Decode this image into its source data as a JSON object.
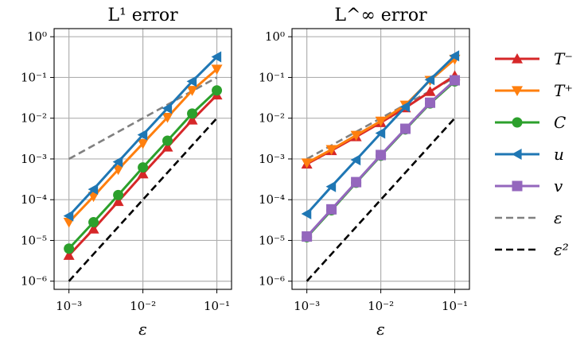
{
  "chart_data": [
    {
      "type": "line",
      "title": "L¹ error",
      "xlabel": "ε",
      "xscale": "log",
      "yscale": "log",
      "xlim": [
        0.00063,
        0.158
      ],
      "ylim": [
        6.3e-07,
        1.58
      ],
      "xticks": [
        "10⁻³",
        "10⁻²",
        "10⁻¹"
      ],
      "yticks": [
        "10⁰",
        "10⁻¹",
        "10⁻²",
        "10⁻³",
        "10⁻⁴",
        "10⁻⁵",
        "10⁻⁶"
      ],
      "grid": true,
      "x": [
        0.001,
        0.00215,
        0.00464,
        0.01,
        0.0215,
        0.0464,
        0.1
      ],
      "series": [
        {
          "name": "T⁻",
          "values": [
            4.3e-06,
            1.9e-05,
            9e-05,
            0.00043,
            0.00195,
            0.009,
            0.037
          ]
        },
        {
          "name": "T⁺",
          "values": [
            2.8e-05,
            0.00012,
            0.00055,
            0.0024,
            0.0105,
            0.048,
            0.16
          ]
        },
        {
          "name": "C",
          "values": [
            6.3e-06,
            2.8e-05,
            0.00013,
            0.00062,
            0.0028,
            0.013,
            0.048
          ]
        },
        {
          "name": "u",
          "values": [
            4e-05,
            0.00018,
            0.00085,
            0.0039,
            0.0175,
            0.08,
            0.32
          ]
        },
        {
          "name": "ε",
          "values": [
            0.001,
            null,
            null,
            null,
            null,
            null,
            0.1
          ]
        },
        {
          "name": "ε²",
          "values": [
            1e-06,
            null,
            null,
            null,
            null,
            null,
            0.01
          ]
        }
      ]
    },
    {
      "type": "line",
      "title": "L^∞ error",
      "xlabel": "ε",
      "xscale": "log",
      "yscale": "log",
      "xlim": [
        0.00063,
        0.158
      ],
      "ylim": [
        6.3e-07,
        1.58
      ],
      "xticks": [
        "10⁻³",
        "10⁻²",
        "10⁻¹"
      ],
      "yticks": [
        "10⁰",
        "10⁻¹",
        "10⁻²",
        "10⁻³",
        "10⁻⁴",
        "10⁻⁵",
        "10⁻⁶"
      ],
      "grid": true,
      "x": [
        0.001,
        0.00215,
        0.00464,
        0.01,
        0.0215,
        0.0464,
        0.1
      ],
      "series": [
        {
          "name": "T⁻",
          "values": [
            0.00075,
            0.0016,
            0.0035,
            0.0078,
            0.018,
            0.045,
            0.11
          ]
        },
        {
          "name": "T⁺",
          "values": [
            0.0008,
            0.0017,
            0.0038,
            0.0085,
            0.021,
            0.085,
            0.28
          ]
        },
        {
          "name": "C",
          "values": [
            1.2e-05,
            5.5e-05,
            0.00026,
            0.0012,
            0.0053,
            0.023,
            0.08
          ]
        },
        {
          "name": "u",
          "values": [
            4.5e-05,
            0.00021,
            0.00095,
            0.0043,
            0.019,
            0.088,
            0.34
          ]
        },
        {
          "name": "v",
          "values": [
            1.25e-05,
            5.8e-05,
            0.00027,
            0.00125,
            0.0055,
            0.024,
            0.085
          ]
        },
        {
          "name": "ε",
          "values": [
            0.001,
            null,
            null,
            null,
            null,
            null,
            0.1
          ]
        },
        {
          "name": "ε²",
          "values": [
            1e-06,
            null,
            null,
            null,
            null,
            null,
            0.01
          ]
        }
      ]
    }
  ],
  "legend": {
    "placement": "right",
    "entries": [
      {
        "label": "T⁻",
        "color": "#d62728",
        "marker": "triangle-up",
        "style": "solid"
      },
      {
        "label": "T⁺",
        "color": "#ff7f0e",
        "marker": "triangle-down",
        "style": "solid"
      },
      {
        "label": "C",
        "color": "#2ca02c",
        "marker": "circle",
        "style": "solid"
      },
      {
        "label": "u",
        "color": "#1f77b4",
        "marker": "triangle-left",
        "style": "solid"
      },
      {
        "label": "v",
        "color": "#9467bd",
        "marker": "square",
        "style": "solid"
      },
      {
        "label": "ε",
        "color": "#808080",
        "marker": "none",
        "style": "dashed"
      },
      {
        "label": "ε²",
        "color": "#000000",
        "marker": "none",
        "style": "dashed"
      }
    ]
  }
}
